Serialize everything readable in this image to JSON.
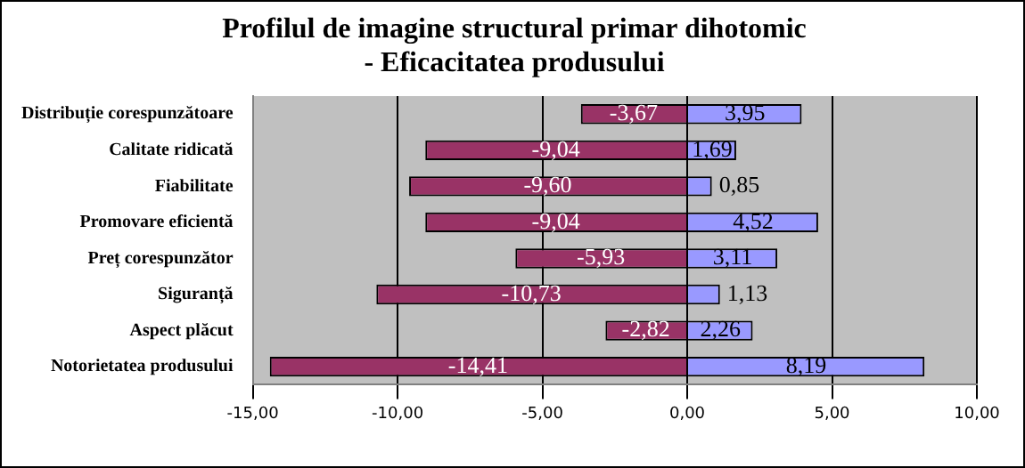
{
  "chart_data": {
    "type": "bar",
    "orientation": "horizontal",
    "stacked": true,
    "title": "Profilul de imagine structural primar dihotomic - Eficacitatea produsului",
    "categories": [
      "Distribuție corespunzătoare",
      "Calitate ridicată",
      "Fiabilitate",
      "Promovare eficientă",
      "Preț corespunzător",
      "Siguranță",
      "Aspect plăcut",
      "Notorietatea produsului"
    ],
    "series": [
      {
        "color": "#993366",
        "values": [
          -3.67,
          -9.04,
          -9.6,
          -9.04,
          -5.93,
          -10.73,
          -2.82,
          -14.41
        ],
        "value_labels": [
          "-3,67",
          "-9,04",
          "-9,60",
          "-9,04",
          "-5,93",
          "-10,73",
          "-2,82",
          "-14,41"
        ]
      },
      {
        "color": "#9999ff",
        "values": [
          3.95,
          1.69,
          0.85,
          4.52,
          3.11,
          1.13,
          2.26,
          8.19
        ],
        "value_labels": [
          "3,95",
          "1,69",
          "0,85",
          "4,52",
          "3,11",
          "1,13",
          "2,26",
          "8,19"
        ]
      }
    ],
    "xlim": [
      -15,
      10
    ],
    "xticks": [
      {
        "value": -15,
        "label": "-15,00"
      },
      {
        "value": -10,
        "label": "-10,00"
      },
      {
        "value": -5,
        "label": "-5,00"
      },
      {
        "value": 0,
        "label": "0,00"
      },
      {
        "value": 5,
        "label": "5,00"
      },
      {
        "value": 10,
        "label": "10,00"
      }
    ],
    "grid": "x",
    "legend": false
  }
}
